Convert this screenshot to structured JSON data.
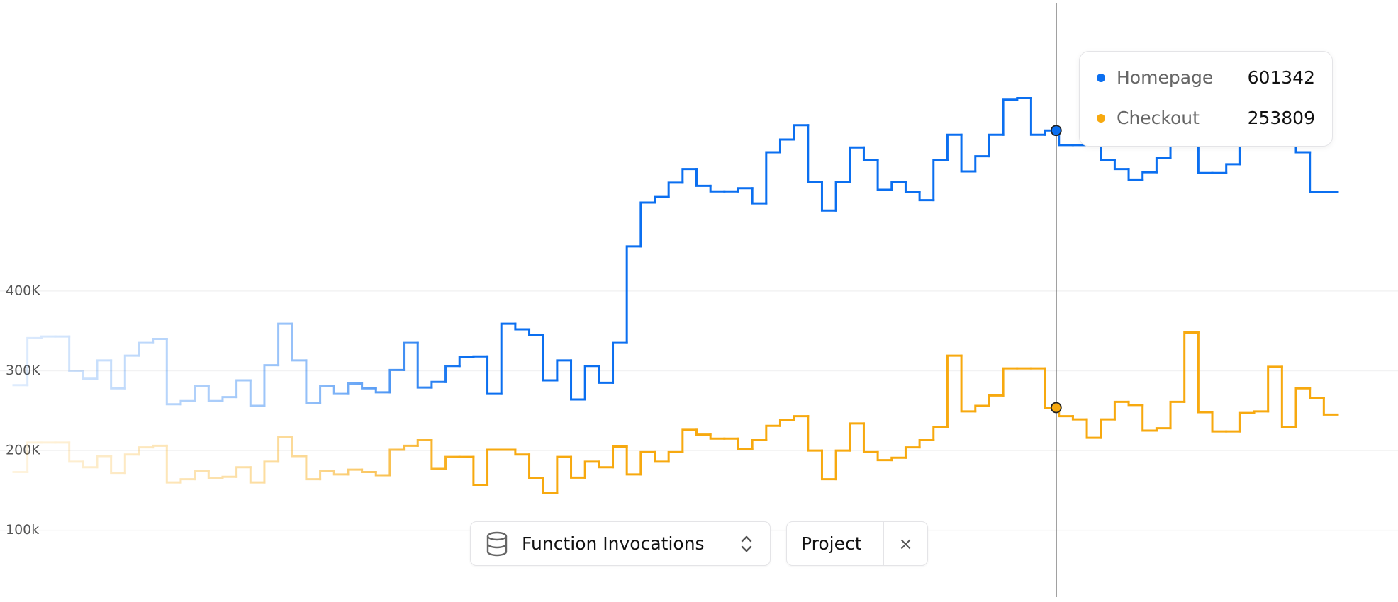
{
  "chart_data": {
    "type": "step",
    "ylim": [
      10000,
      765000
    ],
    "yticks": [
      {
        "value": 100000,
        "label": "100k"
      },
      {
        "value": 200000,
        "label": "200K"
      },
      {
        "value": 300000,
        "label": "300K"
      },
      {
        "value": 400000,
        "label": "400K"
      }
    ],
    "grid": true,
    "series": [
      {
        "name": "Homepage",
        "color": "#0b6ff0",
        "values": [
          282000,
          341000,
          343000,
          343000,
          300000,
          290000,
          313000,
          278000,
          319000,
          335000,
          340000,
          258000,
          262000,
          281000,
          262000,
          267000,
          288000,
          256000,
          307000,
          359000,
          313000,
          260000,
          281000,
          271000,
          284000,
          278000,
          273000,
          301000,
          335000,
          279000,
          286000,
          306000,
          317000,
          318000,
          271000,
          359000,
          352000,
          345000,
          288000,
          313000,
          264000,
          306000,
          285000,
          335000,
          456000,
          511000,
          518000,
          536000,
          553000,
          532000,
          525000,
          525000,
          529000,
          510000,
          574000,
          590000,
          608000,
          537000,
          501000,
          537000,
          580000,
          564000,
          527000,
          537000,
          524000,
          514000,
          564000,
          596000,
          550000,
          569000,
          596000,
          640000,
          642000,
          596000,
          601342,
          583000,
          583000,
          583000,
          564000,
          553000,
          539000,
          549000,
          567000,
          609000,
          609000,
          548000,
          548000,
          559000,
          596000,
          593000,
          593000,
          593000,
          574000,
          524000,
          524000
        ]
      },
      {
        "name": "Checkout",
        "color": "#f7a90f",
        "values": [
          173000,
          210000,
          210000,
          210000,
          186000,
          179000,
          193000,
          172000,
          195000,
          204000,
          206000,
          160000,
          164000,
          174000,
          165000,
          167000,
          179000,
          160000,
          186000,
          217000,
          193000,
          164000,
          174000,
          170000,
          176000,
          173000,
          169000,
          201000,
          206000,
          213000,
          177000,
          192000,
          192000,
          157000,
          201000,
          201000,
          195000,
          165000,
          147000,
          192000,
          166000,
          186000,
          179000,
          205000,
          170000,
          198000,
          186000,
          198000,
          226000,
          220000,
          215000,
          215000,
          202000,
          213000,
          231000,
          238000,
          243000,
          200000,
          164000,
          200000,
          234000,
          198000,
          188000,
          191000,
          204000,
          213000,
          229000,
          319000,
          249000,
          256000,
          269000,
          303000,
          303000,
          303000,
          253809,
          243000,
          239000,
          216000,
          239000,
          261000,
          257000,
          225000,
          228000,
          261000,
          348000,
          248000,
          224000,
          224000,
          247000,
          249000,
          305000,
          229000,
          278000,
          266000,
          245000
        ]
      }
    ]
  },
  "toolbar": {
    "metric": "Function Invocations",
    "filter": "Project",
    "remove": "×"
  }
}
